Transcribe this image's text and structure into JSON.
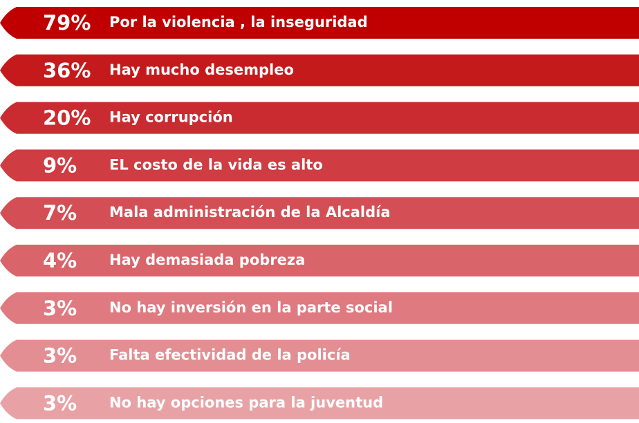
{
  "items": [
    {
      "percent": "79%",
      "label": "Por la violencia , la inseguridad",
      "color": "#c00000"
    },
    {
      "percent": "36%",
      "label": "Hay mucho desempleo",
      "color": "#c51a1c"
    },
    {
      "percent": "20%",
      "label": "Hay corrupción",
      "color": "#ca2b30"
    },
    {
      "percent": "9%",
      "label": "EL costo de la vida es alto",
      "color": "#cf3c42"
    },
    {
      "percent": "7%",
      "label": "Mala administración de la Alcaldía",
      "color": "#d44f55"
    },
    {
      "percent": "4%",
      "label": "Hay demasiada pobreza",
      "color": "#d9646a"
    },
    {
      "percent": "3%",
      "label": "No hay inversión en la parte social",
      "color": "#de7a80"
    },
    {
      "percent": "3%",
      "label": "Falta efectividad de la policía",
      "color": "#e38e93"
    },
    {
      "percent": "3%",
      "label": "No hay opciones para la juventud",
      "color": "#e8a2a6"
    }
  ]
}
